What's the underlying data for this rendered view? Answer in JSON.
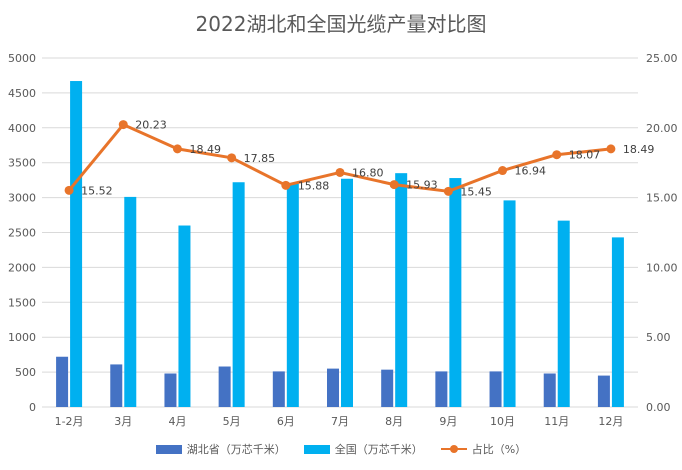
{
  "chart_data": {
    "type": "bar",
    "title": "2022湖北和全国光缆产量对比图",
    "categories": [
      "1-2月",
      "3月",
      "4月",
      "5月",
      "6月",
      "7月",
      "8月",
      "9月",
      "10月",
      "11月",
      "12月"
    ],
    "series": [
      {
        "name": "湖北省（万芯千米）",
        "type": "bar",
        "axis": "left",
        "color": "#4472C4",
        "values": [
          720,
          610,
          480,
          580,
          510,
          550,
          535,
          510,
          510,
          480,
          450
        ]
      },
      {
        "name": "全国（万芯千米）",
        "type": "bar",
        "axis": "left",
        "color": "#00B0F0",
        "values": [
          4670,
          3010,
          2600,
          3220,
          3200,
          3270,
          3350,
          3280,
          2960,
          2670,
          2430
        ]
      },
      {
        "name": "占比（%）",
        "type": "line",
        "axis": "right",
        "color": "#E8742A",
        "values": [
          15.52,
          20.23,
          18.49,
          17.85,
          15.88,
          16.8,
          15.93,
          15.45,
          16.94,
          18.07,
          18.49
        ],
        "labels": [
          "15.52",
          "20.23",
          "18.49",
          "17.85",
          "15.88",
          "16.80",
          "15.93",
          "15.45",
          "16.94",
          "18.07",
          "18.49"
        ]
      }
    ],
    "y_left": {
      "min": 0,
      "max": 5000,
      "step": 500,
      "ticks": [
        "0",
        "500",
        "1000",
        "1500",
        "2000",
        "2500",
        "3000",
        "3500",
        "4000",
        "4500",
        "5000"
      ]
    },
    "y_right": {
      "min": 0,
      "max": 25,
      "step": 5,
      "ticks": [
        "0.00",
        "5.00",
        "10.00",
        "15.00",
        "20.00",
        "25.00"
      ]
    },
    "grid": true,
    "legend_position": "bottom"
  }
}
